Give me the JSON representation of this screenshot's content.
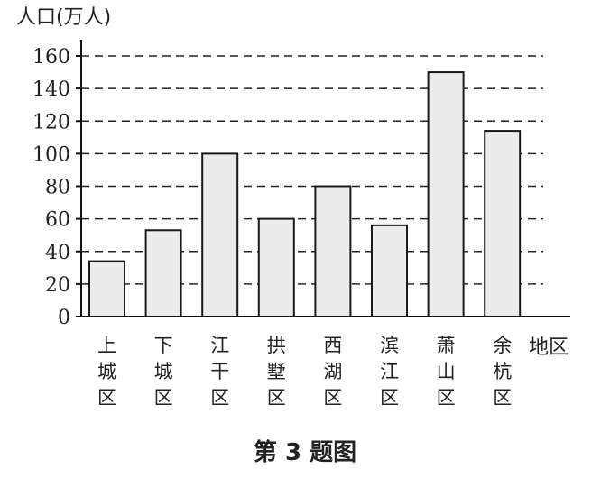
{
  "chart_data": {
    "type": "bar",
    "ylabel": "人口(万人)",
    "xlabel": "地区",
    "categories": [
      "上城区",
      "下城区",
      "江干区",
      "拱墅区",
      "西湖区",
      "滨江区",
      "萧山区",
      "余杭区"
    ],
    "values": [
      34,
      53,
      100,
      60,
      80,
      56,
      150,
      114
    ],
    "ylim": [
      0,
      160
    ],
    "yticks": [
      0,
      20,
      40,
      60,
      80,
      100,
      120,
      140,
      160
    ],
    "grid": true,
    "colors": {
      "bar_fill": "#ececec",
      "bar_stroke": "#1a1a1a",
      "grid": "#222222"
    }
  },
  "caption": "第 3 题图"
}
